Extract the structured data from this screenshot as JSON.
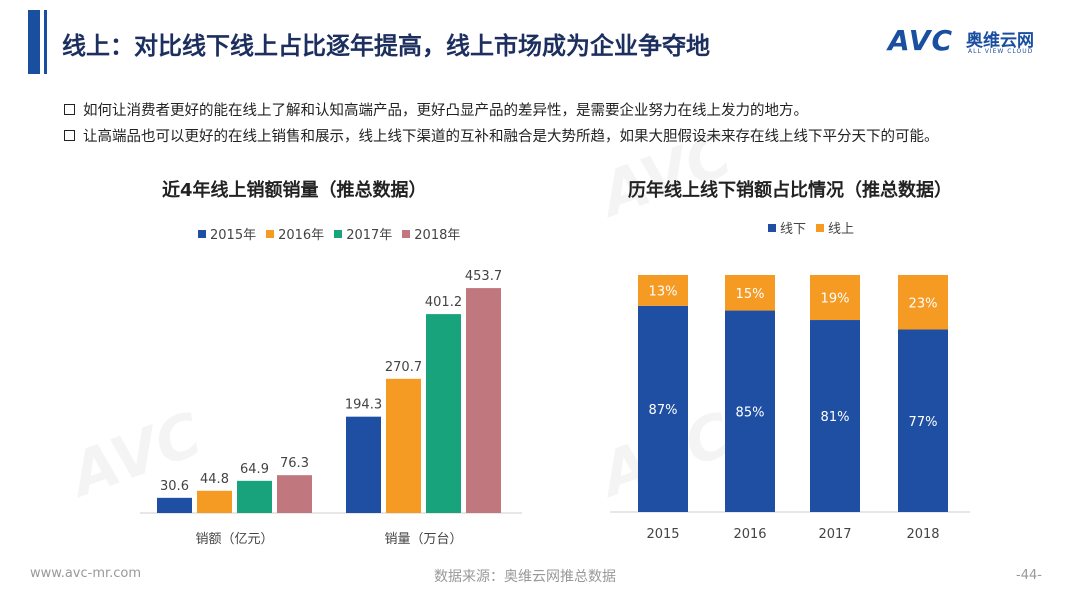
{
  "header": {
    "title": "线上：对比线下线上占比逐年提高，线上市场成为企业争夺地",
    "logo_mark": "AVC",
    "logo_cn": "奥维云网",
    "logo_en": "ALL VIEW CLOUD"
  },
  "bullets": [
    "如何让消费者更好的能在线上了解和认知高端产品，更好凸显产品的差异性，是需要企业努力在线上发力的地方。",
    "让高端品也可以更好的在线上销售和展示，线上线下渠道的互补和融合是大势所趋，如果大胆假设未来存在线上线下平分天下的可能。"
  ],
  "footer": {
    "url": "www.avc-mr.com",
    "source": "数据来源：奥维云网推总数据",
    "page": "-44-"
  },
  "colors": {
    "primary": "#1a4fa0",
    "s2015": "#1f4fa3",
    "s2016": "#f59a23",
    "s2017": "#18a37c",
    "s2018": "#c0787e",
    "offline": "#1f4fa3",
    "online": "#f59a23"
  },
  "chart_data": [
    {
      "type": "bar",
      "title": "近4年线上销额销量（推总数据）",
      "categories": [
        "销额（亿元）",
        "销量（万台）"
      ],
      "series": [
        {
          "name": "2015年",
          "values": [
            30.6,
            194.3
          ]
        },
        {
          "name": "2016年",
          "values": [
            44.8,
            270.7
          ]
        },
        {
          "name": "2017年",
          "values": [
            64.9,
            401.2
          ]
        },
        {
          "name": "2018年",
          "values": [
            76.3,
            453.7
          ]
        }
      ],
      "ylim": [
        0,
        470
      ],
      "legend": "top",
      "grid": false
    },
    {
      "type": "bar",
      "stacked": true,
      "title": "历年线上线下销额占比情况（推总数据）",
      "categories": [
        "2015",
        "2016",
        "2017",
        "2018"
      ],
      "series": [
        {
          "name": "线下",
          "values": [
            87,
            85,
            81,
            77
          ],
          "labels": [
            "87%",
            "85%",
            "81%",
            "77%"
          ]
        },
        {
          "name": "线上",
          "values": [
            13,
            15,
            19,
            23
          ],
          "labels": [
            "13%",
            "15%",
            "19%",
            "23%"
          ]
        }
      ],
      "ylim": [
        0,
        100
      ],
      "legend": "top",
      "grid": false
    }
  ]
}
